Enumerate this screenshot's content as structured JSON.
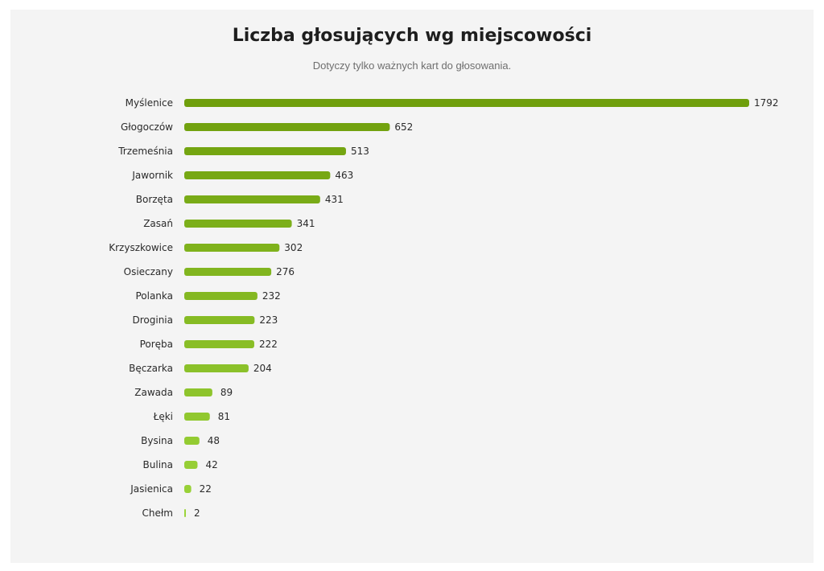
{
  "chart_data": {
    "type": "bar",
    "orientation": "horizontal",
    "title": "Liczba głosujących wg miejscowości",
    "subtitle": "Dotyczy tylko ważnych kart do głosowania.",
    "categories": [
      "Myślenice",
      "Głogoczów",
      "Trzemeśnia",
      "Jawornik",
      "Borzęta",
      "Zasań",
      "Krzyszkowice",
      "Osieczany",
      "Polanka",
      "Droginia",
      "Poręba",
      "Bęczarka",
      "Zawada",
      "Łęki",
      "Bysina",
      "Bulina",
      "Jasienica",
      "Chełm"
    ],
    "values": [
      1792,
      652,
      513,
      463,
      431,
      341,
      302,
      276,
      232,
      223,
      222,
      204,
      89,
      81,
      48,
      42,
      22,
      2
    ],
    "xlim": [
      0,
      1792
    ],
    "grid": false,
    "legend": "none",
    "colors": {
      "dark": "#6f9f0c",
      "light": "#9bd43a",
      "background": "#f4f4f4"
    }
  }
}
